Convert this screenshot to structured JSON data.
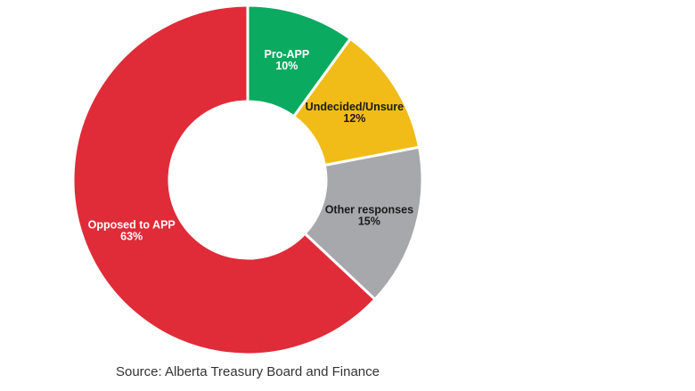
{
  "chart_data": {
    "type": "pie",
    "variant": "donut",
    "slices": [
      {
        "label": "Pro-APP",
        "value_label": "10%",
        "value": 10,
        "color": "#0aaa60",
        "text_color": "#ffffff"
      },
      {
        "label": "Undecided/Unsure",
        "value_label": "12%",
        "value": 12,
        "color": "#f1bc17",
        "text_color": "#1a1a1a"
      },
      {
        "label": "Other responses",
        "value_label": "15%",
        "value": 15,
        "color": "#a6a8ab",
        "text_color": "#1a1a1a"
      },
      {
        "label": "Opposed to APP",
        "value_label": "63%",
        "value": 63,
        "color": "#df2c38",
        "text_color": "#ffffff"
      }
    ],
    "start_angle_deg": 0,
    "direction": "clockwise",
    "legend": "none"
  },
  "source": "Source: Alberta Treasury Board and Finance"
}
